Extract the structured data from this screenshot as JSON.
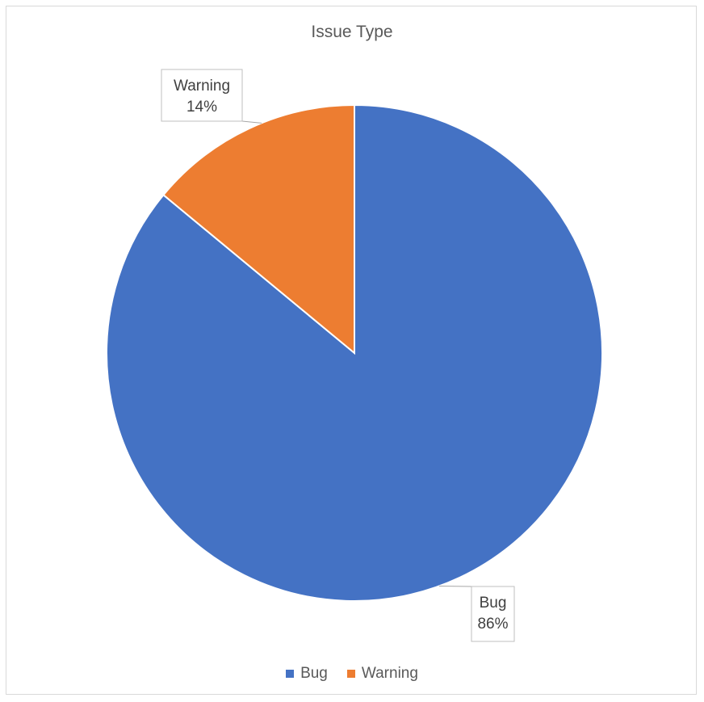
{
  "chart_data": {
    "type": "pie",
    "title": "Issue Type",
    "categories": [
      "Bug",
      "Warning"
    ],
    "values": [
      86,
      14
    ],
    "data_labels": [
      {
        "category": "Bug",
        "percent": "86%"
      },
      {
        "category": "Warning",
        "percent": "14%"
      }
    ],
    "colors": [
      "#4472C4",
      "#ED7D31"
    ],
    "legend_position": "bottom",
    "start_angle_from_top": "Bug begins at 12 o'clock, clockwise"
  }
}
